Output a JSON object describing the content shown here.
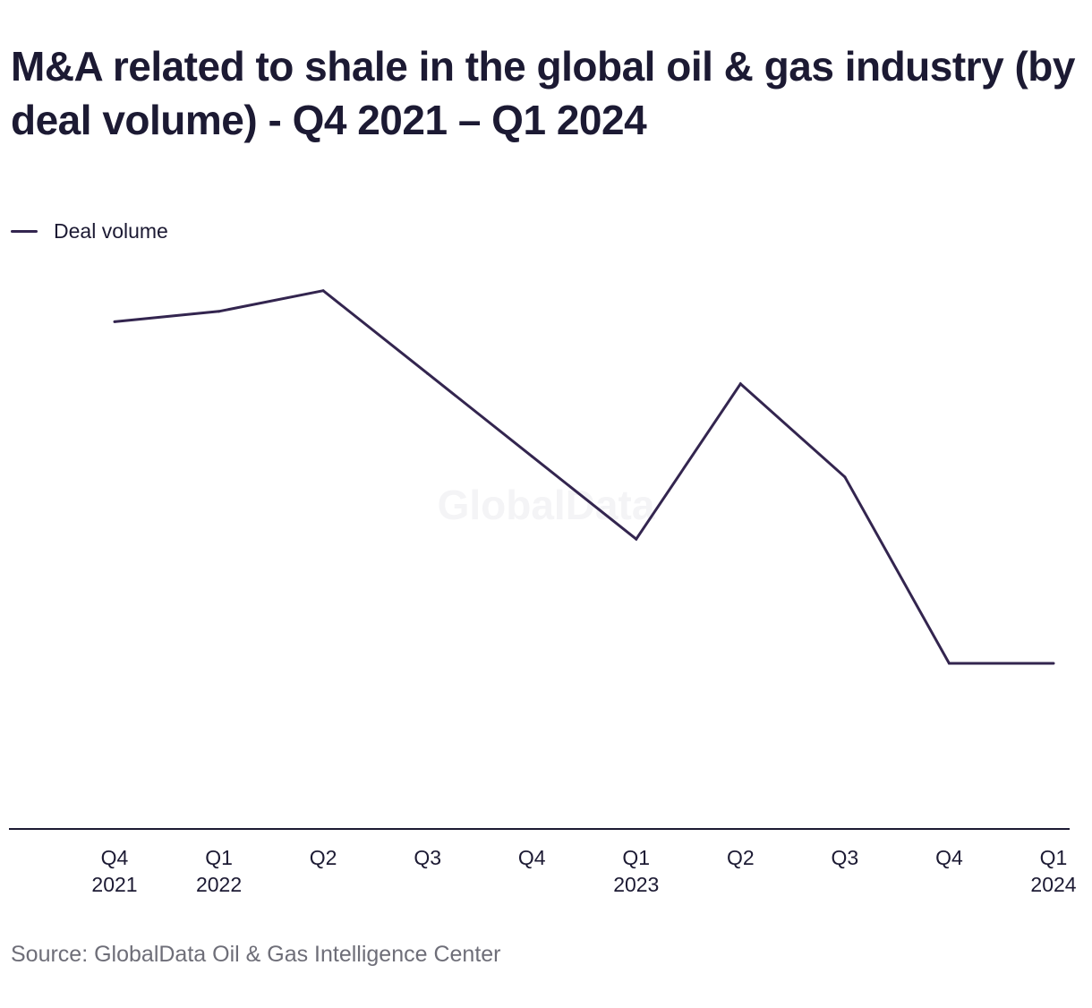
{
  "title": "M&A related to shale in the global oil & gas industry (by deal volume) - Q4 2021 – Q1 2024",
  "watermark": "GlobalData",
  "source": "Source: GlobalData Oil & Gas Intelligence Center",
  "colors": {
    "line": "#33254f",
    "axis": "#1c1a33",
    "text": "#1c1a33",
    "source": "#6e6e78"
  },
  "chart_data": {
    "type": "line",
    "title": "M&A related to shale in the global oil & gas industry (by deal volume) - Q4 2021 – Q1 2024",
    "xlabel": "",
    "ylabel": "",
    "categories": [
      [
        "Q4",
        "2021"
      ],
      [
        "Q1",
        "2022"
      ],
      [
        "Q2"
      ],
      [
        "Q3"
      ],
      [
        "Q4"
      ],
      [
        "Q1",
        "2023"
      ],
      [
        "Q2"
      ],
      [
        "Q3"
      ],
      [
        "Q4"
      ],
      [
        "Q1",
        "2024"
      ]
    ],
    "series": [
      {
        "name": "Deal volume",
        "values": [
          32,
          33,
          35,
          27,
          19,
          11,
          26,
          17,
          -1,
          -1
        ]
      }
    ],
    "ylim": [
      -17,
      38
    ],
    "grid": false,
    "legend": "top-left"
  }
}
